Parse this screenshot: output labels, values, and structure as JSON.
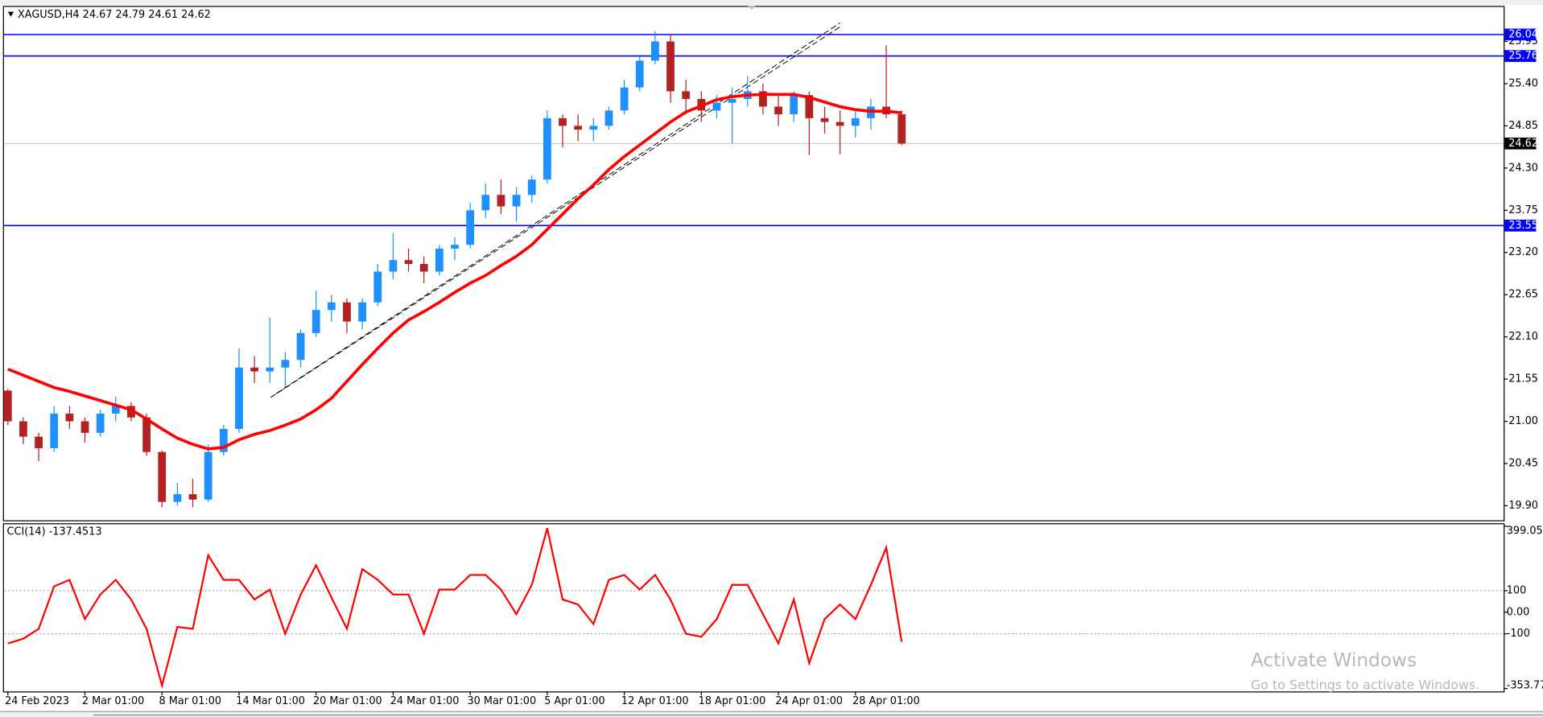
{
  "chart_data": [
    {
      "type": "candlestick",
      "title": "XAGUSD,H4  24.67 24.79 24.61 24.62",
      "categories": [
        "24 Feb 2023",
        null,
        null,
        null,
        null,
        "2 Mar 01:00",
        null,
        null,
        null,
        null,
        "8 Mar 01:00",
        null,
        null,
        null,
        null,
        "14 Mar 01:00",
        null,
        null,
        null,
        null,
        "20 Mar 01:00",
        null,
        null,
        null,
        null,
        "24 Mar 01:00",
        null,
        null,
        null,
        null,
        "30 Mar 01:00",
        null,
        null,
        null,
        null,
        "5 Apr 01:00",
        null,
        null,
        null,
        null,
        "12 Apr 01:00",
        null,
        null,
        null,
        null,
        "18 Apr 01:00",
        null,
        null,
        null,
        null,
        "24 Apr 01:00",
        null,
        null,
        null,
        null,
        "28 Apr 01:00",
        null,
        null,
        null
      ],
      "open": [
        21.4,
        21.0,
        20.8,
        20.65,
        21.1,
        21.0,
        20.85,
        21.1,
        21.2,
        21.05,
        20.6,
        19.95,
        20.05,
        19.98,
        20.6,
        20.9,
        21.7,
        21.65,
        21.7,
        21.8,
        22.15,
        22.45,
        22.55,
        22.3,
        22.55,
        22.95,
        23.1,
        23.05,
        22.95,
        23.25,
        23.3,
        23.75,
        23.95,
        23.8,
        23.95,
        24.15,
        24.95,
        24.85,
        24.8,
        24.85,
        25.05,
        25.35,
        25.7,
        25.95,
        25.3,
        25.2,
        25.05,
        25.15,
        25.2,
        25.3,
        25.1,
        25.0,
        25.25,
        24.95,
        24.9,
        24.85,
        24.95,
        25.1,
        25.0
      ],
      "high": [
        21.42,
        21.05,
        20.85,
        21.2,
        21.2,
        21.05,
        21.15,
        21.32,
        21.25,
        21.1,
        20.62,
        20.2,
        20.25,
        20.7,
        20.95,
        21.95,
        21.85,
        22.35,
        21.9,
        22.2,
        22.7,
        22.65,
        22.6,
        22.6,
        23.05,
        23.45,
        23.25,
        23.15,
        23.3,
        23.4,
        23.85,
        24.1,
        24.15,
        24.05,
        24.2,
        25.05,
        25.0,
        25.0,
        24.95,
        25.1,
        25.45,
        25.75,
        26.08,
        26.05,
        25.45,
        25.3,
        25.25,
        25.35,
        25.5,
        25.4,
        25.25,
        25.3,
        25.3,
        25.1,
        25.05,
        25.05,
        25.2,
        25.9,
        25.05
      ],
      "low": [
        20.95,
        20.7,
        20.48,
        20.6,
        20.9,
        20.72,
        20.8,
        21.0,
        21.0,
        20.55,
        19.88,
        19.9,
        19.88,
        19.95,
        20.55,
        20.85,
        21.5,
        21.5,
        21.45,
        21.7,
        22.1,
        22.3,
        22.15,
        22.2,
        22.5,
        22.85,
        22.95,
        22.8,
        22.9,
        23.1,
        23.25,
        23.65,
        23.7,
        23.6,
        23.85,
        24.1,
        24.57,
        24.65,
        24.65,
        24.8,
        25.0,
        25.3,
        25.65,
        25.15,
        25.0,
        24.9,
        24.95,
        24.62,
        25.1,
        25.0,
        24.85,
        24.9,
        24.47,
        24.75,
        24.48,
        24.7,
        24.8,
        24.95,
        24.6
      ],
      "close": [
        21.0,
        20.8,
        20.65,
        21.1,
        21.0,
        20.85,
        21.1,
        21.2,
        21.05,
        20.6,
        19.95,
        20.05,
        19.98,
        20.6,
        20.9,
        21.7,
        21.65,
        21.7,
        21.8,
        22.15,
        22.45,
        22.55,
        22.3,
        22.55,
        22.95,
        23.1,
        23.05,
        22.95,
        23.25,
        23.3,
        23.75,
        23.95,
        23.8,
        23.95,
        24.15,
        24.95,
        24.85,
        24.8,
        24.85,
        25.05,
        25.35,
        25.7,
        25.95,
        25.3,
        25.2,
        25.05,
        25.15,
        25.2,
        25.3,
        25.1,
        25.0,
        25.25,
        24.95,
        24.9,
        24.85,
        24.95,
        25.1,
        25.0,
        24.62
      ],
      "up_color": "#1e90ff",
      "down_color": "#b22222",
      "moving_average": {
        "color": "#ff0000",
        "values": [
          21.68,
          21.6,
          21.52,
          21.44,
          21.39,
          21.33,
          21.27,
          21.21,
          21.15,
          21.03,
          20.9,
          20.78,
          20.7,
          20.64,
          20.66,
          20.76,
          20.83,
          20.88,
          20.95,
          21.03,
          21.15,
          21.3,
          21.52,
          21.74,
          21.95,
          22.15,
          22.32,
          22.43,
          22.55,
          22.68,
          22.8,
          22.9,
          23.03,
          23.15,
          23.3,
          23.5,
          23.7,
          23.9,
          24.08,
          24.28,
          24.45,
          24.6,
          24.75,
          24.9,
          25.03,
          25.11,
          25.19,
          25.23,
          25.25,
          25.26,
          25.26,
          25.26,
          25.22,
          25.16,
          25.1,
          25.06,
          25.04,
          25.04,
          25.02
        ]
      },
      "hlines": [
        26.04,
        25.76,
        23.55
      ],
      "hline_color": "#0000ff",
      "current_price": 24.62,
      "trendlines": [
        {
          "x": [
            17.05,
            54
          ],
          "y": [
            21.31,
            26.14
          ]
        },
        {
          "x": [
            17.4,
            54
          ],
          "y": [
            21.36,
            26.19
          ]
        }
      ],
      "ylim": [
        19.71,
        26.4
      ],
      "yticks": [
        25.95,
        {
          "value": 25.4,
          "label": "25.40"
        },
        24.85,
        {
          "value": 24.3,
          "label": "24.30"
        },
        23.75,
        {
          "value": 23.2,
          "label": "23.20"
        },
        22.65,
        {
          "value": 22.1,
          "label": "22.10"
        },
        21.55,
        {
          "value": 21,
          "label": "21.00"
        },
        20.45,
        {
          "value": 19.9,
          "label": "19.90"
        }
      ]
    },
    {
      "type": "line",
      "title": "CCI(14) -137.4513",
      "color": "#ff0000",
      "values": [
        -145,
        -123,
        -77,
        120,
        150,
        -32,
        82,
        150,
        59,
        -77,
        -340,
        -68,
        -77,
        264,
        150,
        150,
        59,
        105,
        -100,
        82,
        218,
        68,
        -77,
        200,
        150,
        82,
        82,
        -100,
        105,
        105,
        173,
        173,
        105,
        -9,
        127,
        390,
        59,
        36,
        -55,
        150,
        173,
        105,
        173,
        59,
        -100,
        -114,
        -32,
        127,
        127,
        -9,
        -145,
        59,
        -236,
        -32,
        36,
        -32,
        127,
        300,
        -137.4513
      ],
      "ylim": [
        -353.774,
        399.059
      ],
      "yticks": [
        399.059,
        100,
        {
          "value": 0,
          "label": "0.00"
        },
        -100,
        -353.774
      ],
      "levels": [
        100,
        -100
      ]
    }
  ],
  "watermark": {
    "title": "Activate Windows",
    "subtitle": "Go to Settings to activate Windows."
  }
}
